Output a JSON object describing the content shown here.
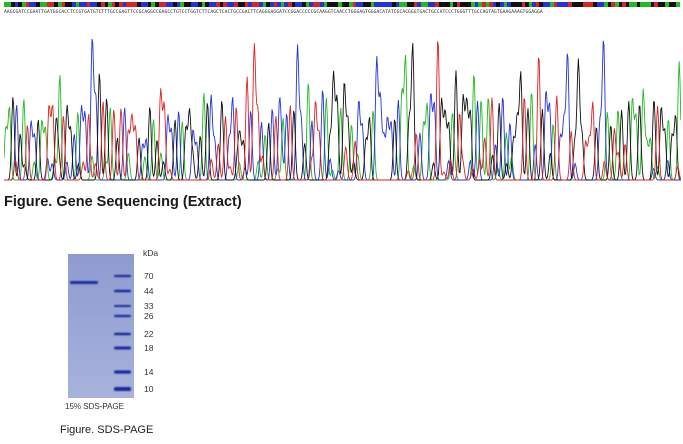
{
  "sequencing": {
    "read": "AAGCGATCCGAATTGATGGCACCTCCGTGATGTCTTTGCCGAGTTCCGCAGGCCGAGCCTGTCCTGGTCTTCAGCTCACTGCCGACTTCAGGGAGGATCCGGACCCCCGCAAGGTCAACCTGGGAGTGGGACATATCGCACGGGTGACTGCCATCCCTGGGTTTGCCAGTAGTGAAGAAAGTGGAGGA",
    "caption": "Figure. Gene Sequencing (Extract)",
    "base_colors": {
      "A": "#22bb22",
      "C": "#2233dd",
      "G": "#111111",
      "T": "#dd2222"
    }
  },
  "gel": {
    "unit_label": "kDa",
    "marker_labels": [
      "70",
      "44",
      "33",
      "26",
      "22",
      "18",
      "14",
      "10"
    ],
    "note": "15% SDS-PAGE",
    "caption": "Figure. SDS-PAGE"
  }
}
